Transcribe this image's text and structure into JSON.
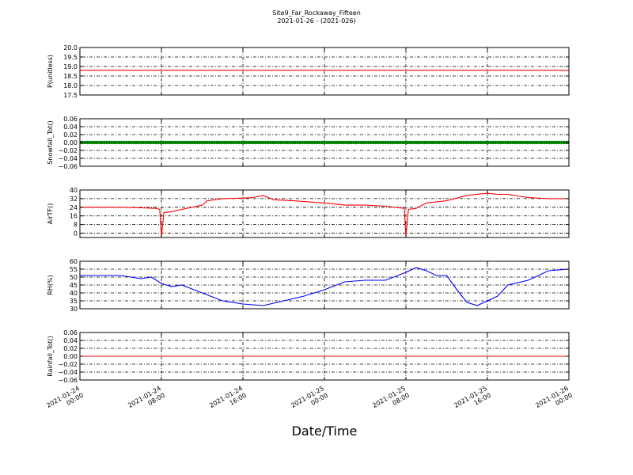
{
  "figure": {
    "title": "Site9_Far_Rockaway_Fifteen",
    "subtitle": "2021-01-26 - (2021-026)",
    "xlabel": "Date/Time",
    "x_ticks": [
      "2021-01-24 00:00",
      "2021-01-24 08:00",
      "2021-01-24 16:00",
      "2021-01-25 00:00",
      "2021-01-25 08:00",
      "2021-01-25 16:00",
      "2021-01-26 00:00"
    ],
    "x_tick_lines": [
      [
        "2021-01-24",
        "00:00"
      ],
      [
        "2021-01-24",
        "08:00"
      ],
      [
        "2021-01-24",
        "16:00"
      ],
      [
        "2021-01-25",
        "00:00"
      ],
      [
        "2021-01-25",
        "08:00"
      ],
      [
        "2021-01-25",
        "16:00"
      ],
      [
        "2021-01-26",
        "00:00"
      ]
    ]
  },
  "chart_data": [
    {
      "type": "line",
      "ylabel": "P(unitless)",
      "ylim": [
        17.5,
        20.0
      ],
      "yticks": [
        17.5,
        18.0,
        18.5,
        19.0,
        19.5,
        20.0
      ],
      "tick_labels": [
        "17.5",
        "18.0",
        "18.5",
        "19.0",
        "19.5",
        "20.0"
      ],
      "xlim": [
        "2021-01-24 00:00",
        "2021-01-26 00:00"
      ],
      "grid": true,
      "color": "#ff0000",
      "x": [
        "2021-01-24 00:00",
        "2021-01-26 00:00"
      ],
      "values": [
        18.8,
        18.8
      ]
    },
    {
      "type": "line",
      "ylabel": "Snowfall_Tot()",
      "ylim": [
        -0.06,
        0.06
      ],
      "yticks": [
        -0.06,
        -0.04,
        -0.02,
        0.0,
        0.02,
        0.04,
        0.06
      ],
      "tick_labels": [
        "−0.06",
        "−0.04",
        "−0.02",
        "0.00",
        "0.02",
        "0.04",
        "0.06"
      ],
      "xlim": [
        "2021-01-24 00:00",
        "2021-01-26 00:00"
      ],
      "grid": true,
      "color": "#008000",
      "markers": true,
      "x": [
        "2021-01-24 00:00",
        "2021-01-26 00:00"
      ],
      "values": [
        0.0,
        0.0
      ]
    },
    {
      "type": "line",
      "ylabel": "AirTF()",
      "ylim": [
        -4,
        40
      ],
      "yticks": [
        0,
        8,
        16,
        24,
        32,
        40
      ],
      "tick_labels": [
        "0",
        "8",
        "16",
        "24",
        "32",
        "40"
      ],
      "xlim": [
        "2021-01-24 00:00",
        "2021-01-26 00:00"
      ],
      "grid": true,
      "color": "#ff0000",
      "x": [
        "2021-01-24 00:00",
        "2021-01-24 02:00",
        "2021-01-24 04:00",
        "2021-01-24 06:00",
        "2021-01-24 07:30",
        "2021-01-24 07:50",
        "2021-01-24 08:00",
        "2021-01-24 08:15",
        "2021-01-24 09:00",
        "2021-01-24 10:00",
        "2021-01-24 11:00",
        "2021-01-24 12:00",
        "2021-01-24 12:30",
        "2021-01-24 14:00",
        "2021-01-24 16:00",
        "2021-01-24 17:00",
        "2021-01-24 18:00",
        "2021-01-24 19:00",
        "2021-01-24 21:00",
        "2021-01-25 00:00",
        "2021-01-25 02:00",
        "2021-01-25 04:00",
        "2021-01-25 06:00",
        "2021-01-25 07:50",
        "2021-01-25 08:00",
        "2021-01-25 08:15",
        "2021-01-25 09:00",
        "2021-01-25 10:00",
        "2021-01-25 12:00",
        "2021-01-25 14:00",
        "2021-01-25 16:00",
        "2021-01-25 17:00",
        "2021-01-25 18:00",
        "2021-01-25 20:00",
        "2021-01-25 22:00",
        "2021-01-26 00:00"
      ],
      "values": [
        24,
        24,
        24,
        23.5,
        23,
        22,
        -3,
        19,
        20,
        22,
        24,
        26,
        30,
        32,
        32.5,
        33,
        35,
        31,
        30,
        28,
        26,
        26,
        25,
        23,
        -3,
        22,
        23,
        28,
        30,
        35,
        37,
        36,
        36,
        33,
        32,
        32
      ]
    },
    {
      "type": "line",
      "ylabel": "RH(%)",
      "ylim": [
        30,
        60
      ],
      "yticks": [
        30,
        35,
        40,
        45,
        50,
        55,
        60
      ],
      "tick_labels": [
        "30",
        "35",
        "40",
        "45",
        "50",
        "55",
        "60"
      ],
      "xlim": [
        "2021-01-24 00:00",
        "2021-01-26 00:00"
      ],
      "grid": true,
      "color": "#0000ff",
      "x": [
        "2021-01-24 00:00",
        "2021-01-24 02:00",
        "2021-01-24 04:00",
        "2021-01-24 06:00",
        "2021-01-24 07:00",
        "2021-01-24 08:00",
        "2021-01-24 09:00",
        "2021-01-24 10:00",
        "2021-01-24 12:00",
        "2021-01-24 14:00",
        "2021-01-24 16:00",
        "2021-01-24 18:00",
        "2021-01-24 20:00",
        "2021-01-24 22:00",
        "2021-01-25 00:00",
        "2021-01-25 02:00",
        "2021-01-25 04:00",
        "2021-01-25 06:00",
        "2021-01-25 08:00",
        "2021-01-25 09:00",
        "2021-01-25 10:00",
        "2021-01-25 11:00",
        "2021-01-25 12:00",
        "2021-01-25 13:00",
        "2021-01-25 14:00",
        "2021-01-25 15:00",
        "2021-01-25 16:00",
        "2021-01-25 17:00",
        "2021-01-25 18:00",
        "2021-01-25 20:00",
        "2021-01-25 22:00",
        "2021-01-26 00:00"
      ],
      "values": [
        51,
        51,
        51,
        49,
        50,
        46,
        44,
        45,
        40,
        35,
        33,
        32,
        35,
        38,
        42,
        47,
        48,
        48,
        53,
        56,
        54,
        51,
        51,
        42,
        34,
        32,
        35,
        38,
        45,
        48,
        54,
        55
      ]
    },
    {
      "type": "line",
      "ylabel": "Rainfall_Tot()",
      "ylim": [
        -0.06,
        0.06
      ],
      "yticks": [
        -0.06,
        -0.04,
        -0.02,
        0.0,
        0.02,
        0.04,
        0.06
      ],
      "tick_labels": [
        "−0.06",
        "−0.04",
        "−0.02",
        "0.00",
        "0.02",
        "0.04",
        "0.06"
      ],
      "xlim": [
        "2021-01-24 00:00",
        "2021-01-26 00:00"
      ],
      "grid": true,
      "color": "#ff0000",
      "x": [
        "2021-01-24 00:00",
        "2021-01-26 00:00"
      ],
      "values": [
        0.0,
        0.0
      ]
    }
  ]
}
